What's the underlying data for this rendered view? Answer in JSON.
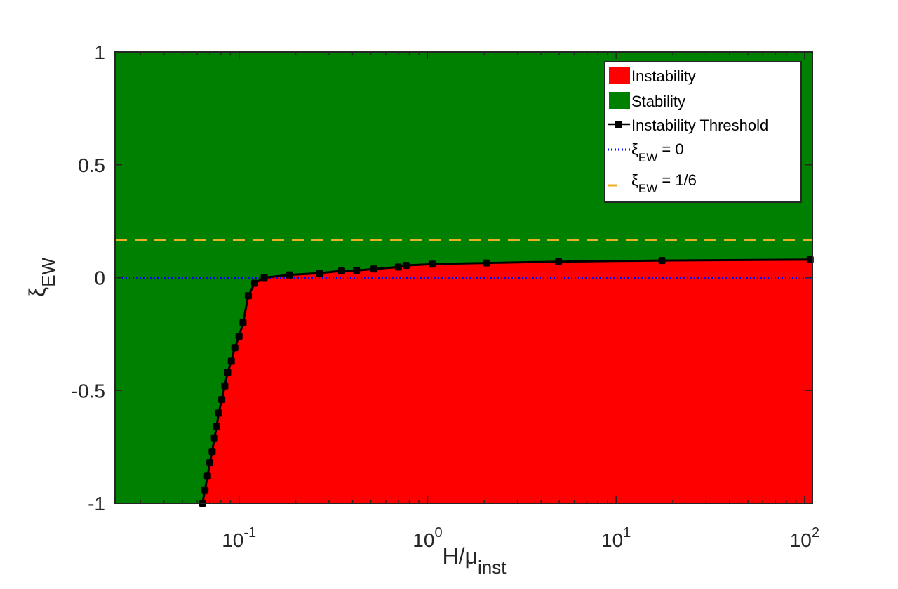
{
  "chart_data": {
    "type": "area",
    "xscale": "log",
    "xlim": [
      0.022,
      110
    ],
    "ylim": [
      -1,
      1
    ],
    "x_ticks": [
      {
        "value": 0.1,
        "base": "10",
        "exp": "-1"
      },
      {
        "value": 1,
        "base": "10",
        "exp": "0"
      },
      {
        "value": 10,
        "base": "10",
        "exp": "1"
      },
      {
        "value": 100,
        "base": "10",
        "exp": "2"
      }
    ],
    "y_ticks": [
      {
        "value": 1,
        "label": "1"
      },
      {
        "value": 0.5,
        "label": "0.5"
      },
      {
        "value": 0,
        "label": "0"
      },
      {
        "value": -0.5,
        "label": "-0.5"
      },
      {
        "value": -1,
        "label": "-1"
      }
    ],
    "xlabel": {
      "main": "H/μ",
      "sub": "inst"
    },
    "ylabel": {
      "main": "ξ",
      "sub": "EW"
    },
    "grid": false,
    "legend_position": "top-right",
    "series": [
      {
        "name": "Instability",
        "kind": "fill-below",
        "color": "#ff0000"
      },
      {
        "name": "Stability",
        "kind": "fill-background",
        "color": "#008000"
      },
      {
        "name": "Instability Threshold",
        "kind": "line-markers",
        "color": "#000000",
        "x": [
          0.064,
          0.066,
          0.068,
          0.07,
          0.072,
          0.074,
          0.076,
          0.078,
          0.081,
          0.084,
          0.087,
          0.091,
          0.095,
          0.1,
          0.105,
          0.112,
          0.121,
          0.136,
          0.185,
          0.267,
          0.35,
          0.42,
          0.52,
          0.7,
          0.77,
          1.06,
          2.05,
          4.95,
          17.5,
          107
        ],
        "y": [
          -1.0,
          -0.94,
          -0.88,
          -0.82,
          -0.77,
          -0.71,
          -0.66,
          -0.6,
          -0.54,
          -0.48,
          -0.42,
          -0.37,
          -0.31,
          -0.26,
          -0.2,
          -0.08,
          -0.025,
          0.0,
          0.012,
          0.02,
          0.03,
          0.032,
          0.038,
          0.047,
          0.054,
          0.06,
          0.065,
          0.071,
          0.076,
          0.08
        ]
      },
      {
        "name": "ξ_EW = 0",
        "label_main": "ξ",
        "label_sub": "EW",
        "label_rest": " = 0",
        "kind": "hline",
        "value": 0,
        "color": "#0000ff",
        "dash": "dotted"
      },
      {
        "name": "ξ_EW = 1/6",
        "label_main": "ξ",
        "label_sub": "EW",
        "label_rest": " = 1/6",
        "kind": "hline",
        "value": 0.1667,
        "color": "#edb120",
        "dash": "dashed"
      }
    ]
  }
}
